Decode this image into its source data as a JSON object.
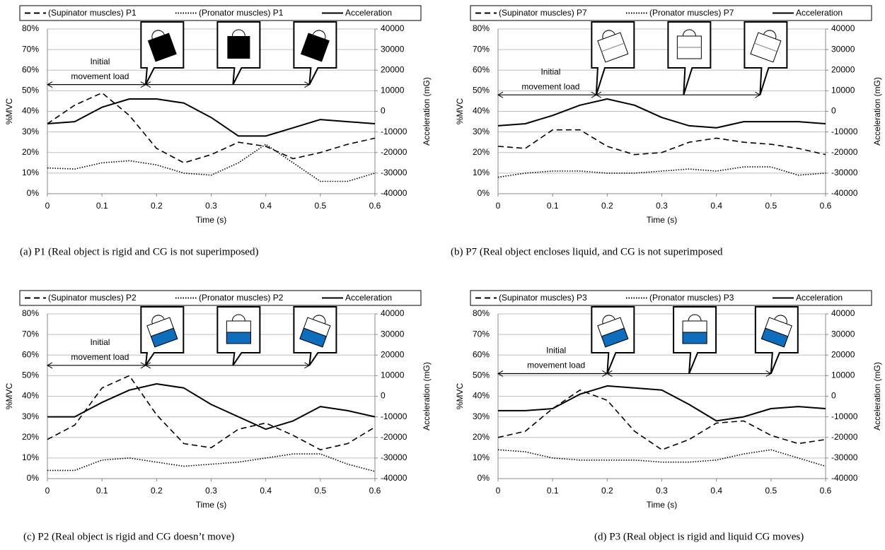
{
  "chart_data": [
    {
      "type": "line",
      "xlabel": "Time (s)",
      "ylabel": "%MVC",
      "y2label": "Acceleration (mG)",
      "annotation": [
        "Initial",
        "movement load"
      ],
      "caption": "(a)  P1 (Real object is rigid and CG is not superimposed)",
      "x": [
        0,
        0.05,
        0.1,
        0.15,
        0.2,
        0.25,
        0.3,
        0.35,
        0.4,
        0.45,
        0.5,
        0.55,
        0.6
      ],
      "xlim": [
        0,
        0.6
      ],
      "xticks": [
        0,
        0.1,
        0.2,
        0.3,
        0.4,
        0.5,
        0.6
      ],
      "ylim": [
        0,
        80
      ],
      "yticks": [
        {
          "value": 0,
          "label": "0%"
        },
        {
          "value": 10,
          "label": "10%"
        },
        {
          "value": 20,
          "label": "20%"
        },
        {
          "value": 30,
          "label": "30%"
        },
        {
          "value": 40,
          "label": "40%"
        },
        {
          "value": 50,
          "label": "50%"
        },
        {
          "value": 60,
          "label": "60%"
        },
        {
          "value": 70,
          "label": "70%"
        },
        {
          "value": 80,
          "label": "80%"
        }
      ],
      "y2lim": [
        -40000,
        40000
      ],
      "y2ticks": [
        -40000,
        -30000,
        -20000,
        -10000,
        0,
        10000,
        20000,
        30000,
        40000
      ],
      "grid": true,
      "series": [
        {
          "name": "(Supinator muscles) P1",
          "color": "#000000",
          "dash": "dashed",
          "values": [
            34,
            43,
            49,
            38,
            22,
            15,
            19,
            25,
            23,
            17,
            20,
            24,
            27
          ]
        },
        {
          "name": "(Pronator muscles) P1",
          "color": "#000000",
          "dash": "dotted",
          "values": [
            12.5,
            12,
            15,
            16,
            14,
            10,
            9,
            15,
            24,
            15,
            6,
            6,
            10
          ]
        },
        {
          "name": "Acceleration",
          "color": "#000000",
          "dash": "solid",
          "axis": "y2",
          "values": [
            -6000,
            -5000,
            2000,
            6000,
            6000,
            4000,
            -3000,
            -12000,
            -12000,
            -8000,
            -4000,
            -5000,
            -6000
          ]
        }
      ]
    },
    {
      "type": "line",
      "xlabel": "Time (s)",
      "ylabel": "%MVC",
      "y2label": "Acceleration (mG)",
      "annotation": [
        "Initial",
        "movement load"
      ],
      "caption": "(b) P7 (Real object encloses liquid, and CG is not superimposed",
      "x": [
        0,
        0.05,
        0.1,
        0.15,
        0.2,
        0.25,
        0.3,
        0.35,
        0.4,
        0.45,
        0.5,
        0.55,
        0.6
      ],
      "xlim": [
        0,
        0.6
      ],
      "xticks": [
        0,
        0.1,
        0.2,
        0.3,
        0.4,
        0.5,
        0.6
      ],
      "ylim": [
        0,
        80
      ],
      "yticks": [
        {
          "value": 0,
          "label": "0%"
        },
        {
          "value": 10,
          "label": "10%"
        },
        {
          "value": 20,
          "label": "20%"
        },
        {
          "value": 30,
          "label": "30%"
        },
        {
          "value": 40,
          "label": "40%"
        },
        {
          "value": 50,
          "label": "50%"
        },
        {
          "value": 60,
          "label": "60%"
        },
        {
          "value": 70,
          "label": "70%"
        },
        {
          "value": 80,
          "label": "80%"
        }
      ],
      "y2lim": [
        -40000,
        40000
      ],
      "y2ticks": [
        -40000,
        -30000,
        -20000,
        -10000,
        0,
        10000,
        20000,
        30000,
        40000
      ],
      "grid": true,
      "series": [
        {
          "name": "(Supinator muscles) P7",
          "color": "#000000",
          "dash": "dashed",
          "values": [
            23,
            22,
            31,
            31,
            23,
            19,
            20,
            25,
            27,
            25,
            24,
            22,
            19
          ]
        },
        {
          "name": "(Pronator muscles) P7",
          "color": "#000000",
          "dash": "dotted",
          "values": [
            8,
            10,
            11,
            11,
            10,
            10,
            11,
            12,
            11,
            13,
            13,
            9,
            10
          ]
        },
        {
          "name": "Acceleration",
          "color": "#000000",
          "dash": "solid",
          "axis": "y2",
          "values": [
            -7000,
            -6000,
            -2000,
            3000,
            6000,
            3000,
            -3000,
            -7000,
            -8000,
            -5000,
            -5000,
            -5000,
            -6000
          ]
        }
      ]
    },
    {
      "type": "line",
      "xlabel": "Time (s)",
      "ylabel": "%MVC",
      "y2label": "Acceleration (mG)",
      "annotation": [
        "Initial",
        "movement load"
      ],
      "caption": "(c)  P2 (Real object is rigid and CG doesn’t move)",
      "x": [
        0,
        0.05,
        0.1,
        0.15,
        0.2,
        0.25,
        0.3,
        0.35,
        0.4,
        0.45,
        0.5,
        0.55,
        0.6
      ],
      "xlim": [
        0,
        0.6
      ],
      "xticks": [
        0,
        0.1,
        0.2,
        0.3,
        0.4,
        0.5,
        0.6
      ],
      "ylim": [
        0,
        80
      ],
      "yticks": [
        {
          "value": 0,
          "label": "0%"
        },
        {
          "value": 10,
          "label": "10%"
        },
        {
          "value": 20,
          "label": "20%"
        },
        {
          "value": 30,
          "label": "30%"
        },
        {
          "value": 40,
          "label": "40%"
        },
        {
          "value": 50,
          "label": "50%"
        },
        {
          "value": 60,
          "label": "60%"
        },
        {
          "value": 70,
          "label": "70%"
        },
        {
          "value": 80,
          "label": "80%"
        }
      ],
      "y2lim": [
        -40000,
        40000
      ],
      "y2ticks": [
        -40000,
        -30000,
        -20000,
        -10000,
        0,
        10000,
        20000,
        30000,
        40000
      ],
      "grid": true,
      "series": [
        {
          "name": "(Supinator muscles) P2",
          "color": "#000000",
          "dash": "dashed",
          "values": [
            19,
            26,
            44,
            50,
            31,
            17,
            15,
            24,
            27,
            21,
            14,
            17,
            25
          ]
        },
        {
          "name": "(Pronator muscles) P2",
          "color": "#000000",
          "dash": "dotted",
          "values": [
            4,
            4,
            9,
            10,
            8,
            6,
            7,
            8,
            10,
            12,
            12,
            7,
            3.5
          ]
        },
        {
          "name": "Acceleration",
          "color": "#000000",
          "dash": "solid",
          "axis": "y2",
          "values": [
            -10000,
            -10000,
            -3000,
            3000,
            6000,
            4000,
            -4000,
            -10000,
            -16000,
            -12000,
            -5000,
            -7000,
            -10000
          ]
        }
      ]
    },
    {
      "type": "line",
      "xlabel": "Time (s)",
      "ylabel": "%MVC",
      "y2label": "Acceleration (mG)",
      "annotation": [
        "Initial",
        "movement load"
      ],
      "caption": "(d) P3 (Real object is rigid and liquid CG moves)",
      "x": [
        0,
        0.05,
        0.1,
        0.15,
        0.2,
        0.25,
        0.3,
        0.35,
        0.4,
        0.45,
        0.5,
        0.55,
        0.6
      ],
      "xlim": [
        0,
        0.6
      ],
      "xticks": [
        0,
        0.1,
        0.2,
        0.3,
        0.4,
        0.5,
        0.6
      ],
      "ylim": [
        0,
        80
      ],
      "yticks": [
        {
          "value": 0,
          "label": "0%"
        },
        {
          "value": 10,
          "label": "10%"
        },
        {
          "value": 20,
          "label": "20%"
        },
        {
          "value": 30,
          "label": "30%"
        },
        {
          "value": 40,
          "label": "40%"
        },
        {
          "value": 50,
          "label": "50%"
        },
        {
          "value": 60,
          "label": "60%"
        },
        {
          "value": 70,
          "label": "70%"
        },
        {
          "value": 80,
          "label": "80%"
        }
      ],
      "y2lim": [
        -40000,
        40000
      ],
      "y2ticks": [
        -40000,
        -30000,
        -20000,
        -10000,
        0,
        10000,
        20000,
        30000,
        40000
      ],
      "grid": true,
      "series": [
        {
          "name": "(Supinator muscles) P3",
          "color": "#000000",
          "dash": "dashed",
          "values": [
            20,
            23,
            34,
            43,
            38,
            23,
            14,
            19,
            27,
            28,
            21,
            17,
            19
          ]
        },
        {
          "name": "(Pronator muscles) P3",
          "color": "#000000",
          "dash": "dotted",
          "values": [
            14,
            13,
            10,
            9,
            9,
            9,
            8,
            8,
            9,
            12,
            14,
            10,
            6
          ]
        },
        {
          "name": "Acceleration",
          "color": "#000000",
          "dash": "solid",
          "axis": "y2",
          "values": [
            -7000,
            -7000,
            -6000,
            1000,
            5000,
            4000,
            3000,
            -4000,
            -12000,
            -10000,
            -6000,
            -5000,
            -6000
          ]
        }
      ]
    }
  ]
}
